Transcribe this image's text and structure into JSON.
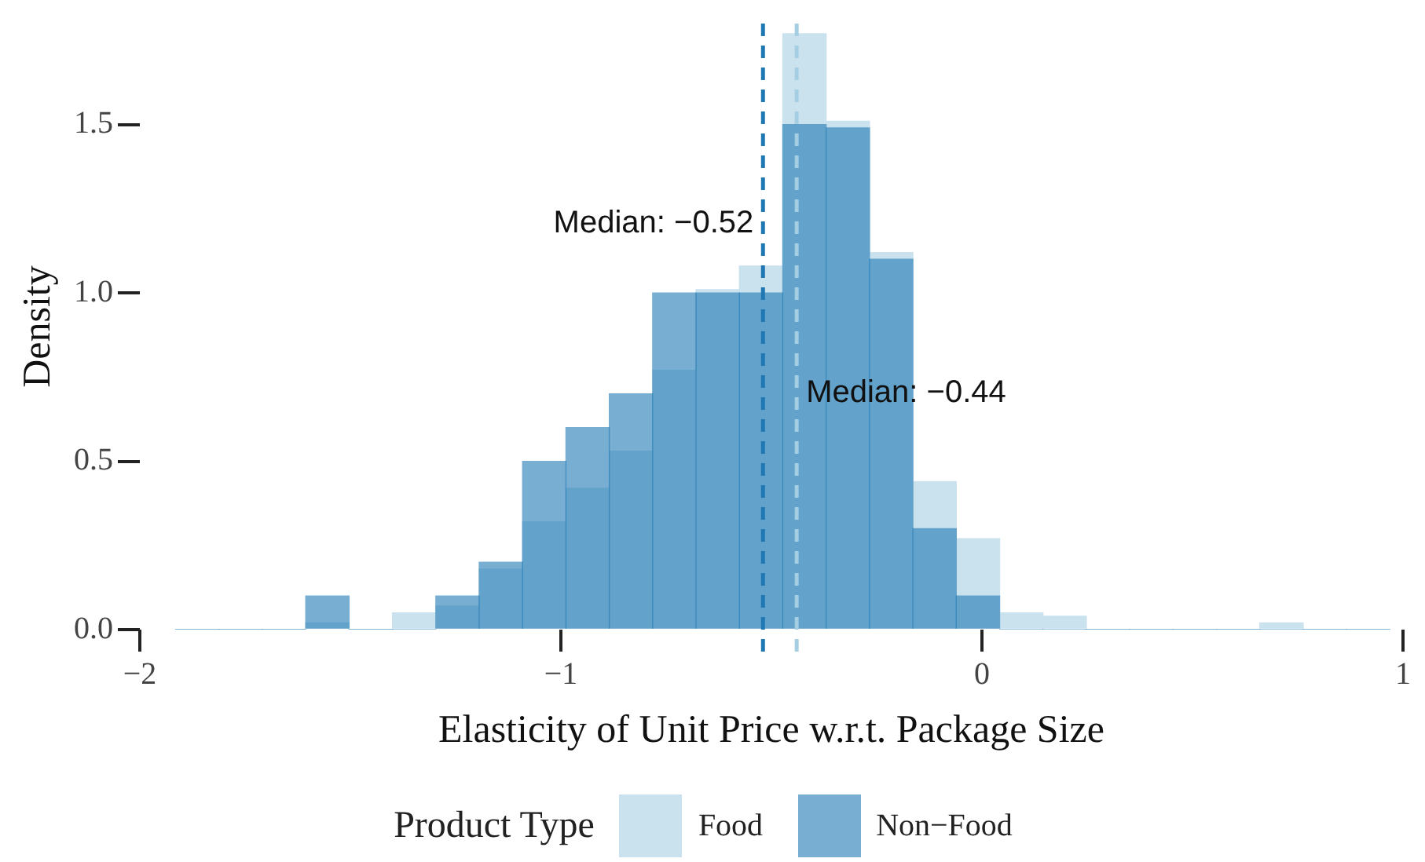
{
  "chart_data": {
    "type": "histogram",
    "xlabel": "Elasticity of Unit Price w.r.t. Package Size",
    "ylabel": "Density",
    "legend_title": "Product Type",
    "legend": "bottom",
    "bins": [
      -1.915,
      -1.812,
      -1.709,
      -1.606,
      -1.503,
      -1.4,
      -1.297,
      -1.194,
      -1.091,
      -0.988,
      -0.885,
      -0.782,
      -0.679,
      -0.576,
      -0.473,
      -0.37,
      -0.267,
      -0.164,
      -0.061,
      0.042,
      0.145,
      0.248,
      0.351,
      0.454,
      0.557,
      0.66,
      0.763,
      0.866,
      0.969
    ],
    "series": [
      {
        "name": "Food",
        "color": "#cae2ee",
        "values": [
          0,
          0,
          0,
          0.02,
          0,
          0.05,
          0.07,
          0.18,
          0.32,
          0.42,
          0.53,
          0.77,
          1.01,
          1.08,
          1.77,
          1.51,
          1.12,
          0.44,
          0.27,
          0.05,
          0.04,
          0,
          0,
          0,
          0,
          0.02,
          0,
          0
        ]
      },
      {
        "name": "Non−Food",
        "color": "#78aed2",
        "values": [
          0,
          0,
          0,
          0.1,
          0,
          0,
          0.1,
          0.2,
          0.5,
          0.6,
          0.7,
          1.0,
          1.0,
          1.0,
          1.5,
          1.49,
          1.1,
          0.3,
          0.1,
          0,
          0,
          0,
          0,
          0,
          0,
          0,
          0,
          0
        ]
      }
    ],
    "xlim": [
      -2,
      1
    ],
    "xticks": [
      {
        "value": -2,
        "label": "−2"
      },
      {
        "value": -1,
        "label": "−1"
      },
      0,
      1
    ],
    "ylim": [
      0,
      1.8
    ],
    "yticks": [
      {
        "value": 0,
        "label": "0.0"
      },
      {
        "value": 0.5,
        "label": "0.5"
      },
      {
        "value": 1,
        "label": "1.0"
      },
      {
        "value": 1.5,
        "label": "1.5"
      }
    ],
    "grid": false,
    "ref_lines": [
      {
        "axis": "x",
        "value": -0.52,
        "label": "Median: −0.52",
        "color": "#1f78b4",
        "line_style": "dashed"
      },
      {
        "axis": "x",
        "value": -0.44,
        "label": "Median: −0.44",
        "color": "#a6cee3",
        "line_style": "dashed"
      }
    ]
  }
}
